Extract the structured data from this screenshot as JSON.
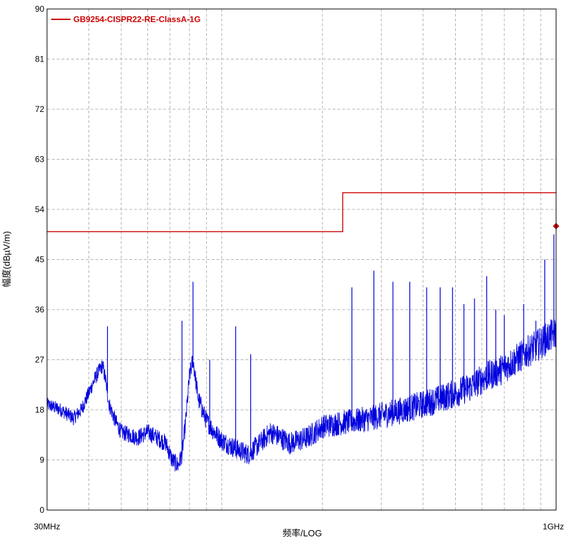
{
  "chart_data": {
    "type": "line",
    "title": "",
    "xlabel": "频率/LOG",
    "ylabel": "幅度(dBµV/m)",
    "x_scale": "log",
    "x_unit": "MHz",
    "xlim": [
      30,
      1000
    ],
    "ylim": [
      0,
      90
    ],
    "y_ticks": [
      0,
      9,
      18,
      27,
      36,
      45,
      54,
      63,
      72,
      81,
      90
    ],
    "x_tick_labels": [
      {
        "x": 30,
        "label": "30MHz"
      },
      {
        "x": 1000,
        "label": "1GHz"
      }
    ],
    "x_minor_grid": [
      40,
      50,
      60,
      70,
      80,
      90,
      100,
      200,
      300,
      400,
      500,
      600,
      700,
      800,
      900
    ],
    "grid": true,
    "legend_position": "top-left",
    "series": [
      {
        "name": "GB9254-CISPR22-RE-ClassA-1G",
        "color": "#cc0000",
        "role": "limit",
        "x": [
          30,
          230,
          230,
          1000
        ],
        "y": [
          50,
          50,
          57,
          57
        ]
      },
      {
        "name": "",
        "color": "#0000dd",
        "role": "measurement",
        "x": [
          30,
          33,
          36,
          38,
          40,
          42,
          44,
          45,
          46,
          48,
          50,
          53,
          56,
          60,
          64,
          68,
          71,
          74,
          76,
          78,
          80,
          82,
          85,
          90,
          95,
          100,
          110,
          120,
          130,
          140,
          150,
          160,
          170,
          180,
          190,
          200,
          220,
          250,
          280,
          300,
          350,
          400,
          450,
          500,
          550,
          600,
          700,
          800,
          900,
          1000
        ],
        "y": [
          19,
          18,
          16.5,
          18,
          21,
          24,
          26,
          23,
          19,
          16,
          14,
          13.5,
          13,
          14,
          13,
          12,
          9,
          8,
          10,
          16,
          24,
          27,
          20,
          16,
          14,
          12.5,
          11,
          10,
          12,
          14,
          13,
          12,
          12.5,
          13,
          14,
          15,
          15.5,
          16,
          16.5,
          17,
          18,
          19,
          20,
          21,
          22,
          23.5,
          25.5,
          28,
          30,
          32
        ],
        "spikes": [
          {
            "x": 45.5,
            "y": 33
          },
          {
            "x": 76,
            "y": 34
          },
          {
            "x": 82,
            "y": 41
          },
          {
            "x": 92,
            "y": 27
          },
          {
            "x": 110,
            "y": 33
          },
          {
            "x": 122,
            "y": 28
          },
          {
            "x": 245,
            "y": 40
          },
          {
            "x": 285,
            "y": 43
          },
          {
            "x": 325,
            "y": 41
          },
          {
            "x": 365,
            "y": 41
          },
          {
            "x": 410,
            "y": 40
          },
          {
            "x": 450,
            "y": 40
          },
          {
            "x": 490,
            "y": 40
          },
          {
            "x": 530,
            "y": 37
          },
          {
            "x": 570,
            "y": 38
          },
          {
            "x": 620,
            "y": 42
          },
          {
            "x": 660,
            "y": 36
          },
          {
            "x": 700,
            "y": 35
          },
          {
            "x": 800,
            "y": 37
          },
          {
            "x": 870,
            "y": 34
          },
          {
            "x": 925,
            "y": 45
          },
          {
            "x": 985,
            "y": 49.5
          }
        ]
      }
    ],
    "marker": {
      "x": 1000,
      "y": 51,
      "color": "#cc0000"
    }
  }
}
